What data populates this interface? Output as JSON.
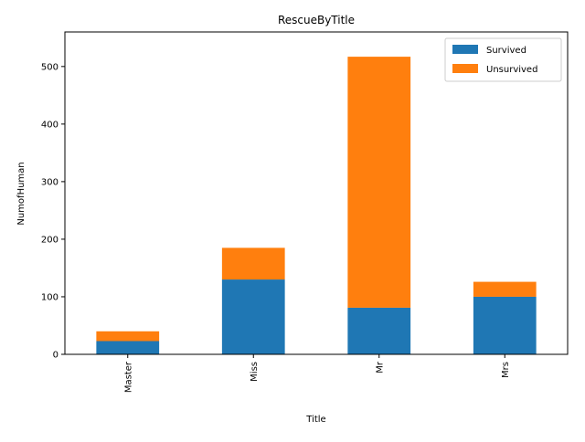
{
  "chart_data": {
    "type": "bar",
    "stacked": true,
    "title": "RescueByTitle",
    "xlabel": "Title",
    "ylabel": "NumofHuman",
    "categories": [
      "Master",
      "Miss",
      "Mr",
      "Mrs"
    ],
    "series": [
      {
        "name": "Survived",
        "values": [
          23,
          130,
          81,
          100
        ],
        "color": "#1f77b4"
      },
      {
        "name": "Unsurvived",
        "values": [
          17,
          55,
          436,
          26
        ],
        "color": "#ff7f0e"
      }
    ],
    "ylim": [
      0,
      560
    ],
    "yticks": [
      0,
      100,
      200,
      300,
      400,
      500
    ],
    "grid": false,
    "legend_position": "top-right"
  }
}
